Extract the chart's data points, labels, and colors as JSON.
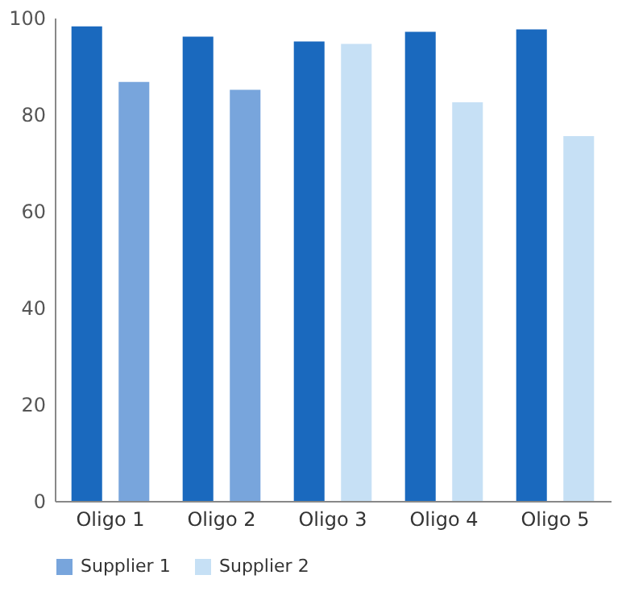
{
  "chart_data": {
    "type": "bar",
    "categories": [
      "Oligo 1",
      "Oligo 2",
      "Oligo 3",
      "Oligo 4",
      "Oligo 5"
    ],
    "series": [
      {
        "color": "#1a69be",
        "values": [
          98.2,
          96.1,
          95.1,
          97.1,
          97.6
        ]
      },
      {
        "name": "Supplier 1",
        "color": "#78a5dc",
        "values": [
          86.7,
          85.1,
          null,
          null,
          null
        ]
      },
      {
        "name": "Supplier 2",
        "color": "#c6e0f5",
        "values": [
          null,
          null,
          94.6,
          82.5,
          75.5
        ]
      }
    ],
    "ylim": [
      0,
      100
    ],
    "yticks": [
      0,
      20,
      40,
      60,
      80,
      100
    ],
    "grid": false,
    "legend": "bottom"
  }
}
